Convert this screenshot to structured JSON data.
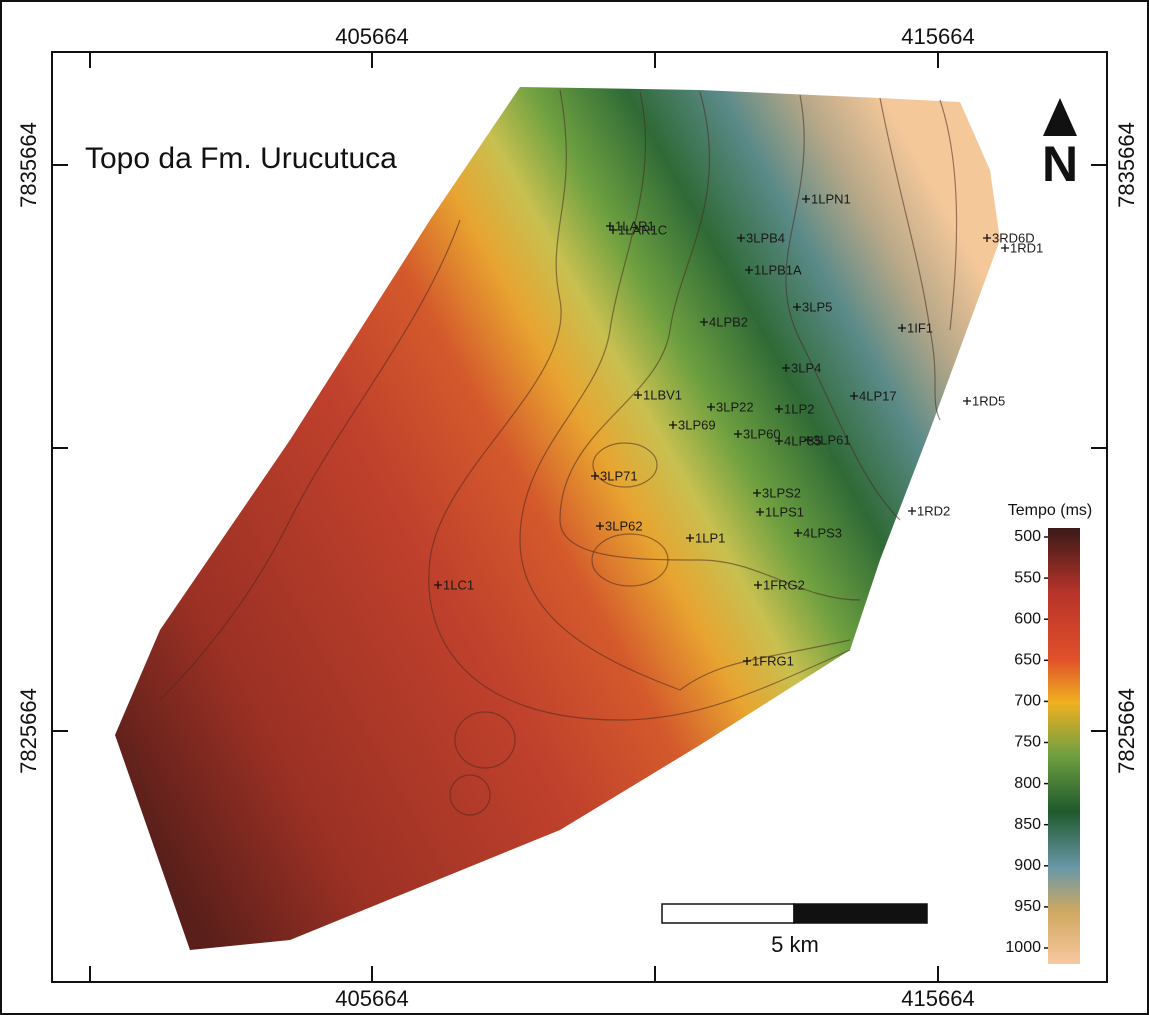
{
  "title": "Topo da Fm. Urucutuca",
  "eastings": [
    405664,
    415664
  ],
  "northings": [
    7835664,
    7825664
  ],
  "north_label": "N",
  "wells": [
    "1LPN1",
    "1LAR1",
    "1LAR1C",
    "3LPB4",
    "3RD6D",
    "1RD1",
    "1LPB1A",
    "3LP5",
    "4LPB2",
    "1IF1",
    "3LP4",
    "1LBV1",
    "4LP17",
    "1RD5",
    "3LP22",
    "1LP2",
    "3LP69",
    "3LP60",
    "4LP35",
    "3LP61",
    "3LP71",
    "3LPS2",
    "1RD2",
    "1LPS1",
    "3LP62",
    "4LPS3",
    "1LP1",
    "1LC1",
    "1FRG2",
    "1FRG1"
  ],
  "legend": {
    "title": "Tempo (ms)",
    "ticks": [
      500,
      550,
      600,
      650,
      700,
      750,
      800,
      850,
      900,
      950,
      1000
    ]
  },
  "scale_bar": {
    "label": "5 km"
  }
}
